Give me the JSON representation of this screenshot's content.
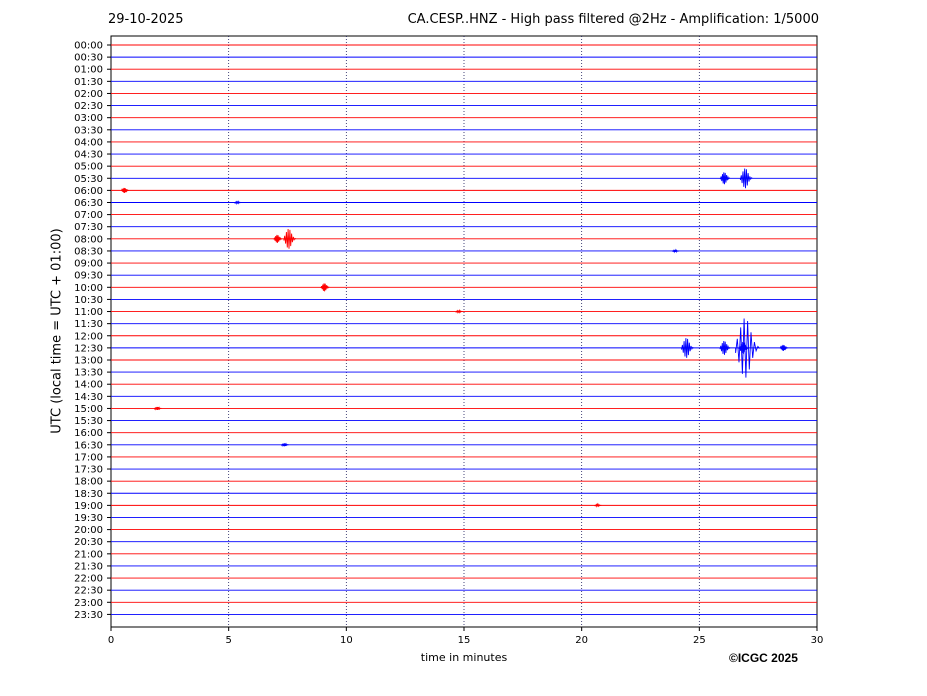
{
  "header": {
    "date": "29-10-2025",
    "title": "CA.CESP..HNZ - High pass filtered @2Hz - Amplification: 1/5000"
  },
  "footer": {
    "credit": "©ICGC 2025"
  },
  "chart_data": {
    "type": "line",
    "title": "CA.CESP..HNZ - High pass filtered @2Hz - Amplification: 1/5000",
    "xlabel": "time in minutes",
    "ylabel": "UTC (local time = UTC + 01:00)",
    "xlim": [
      0,
      30
    ],
    "xticks": [
      0,
      5,
      10,
      15,
      20,
      25,
      30
    ],
    "grid": "vertical dotted at x = 5, 10, 15, 20, 25",
    "colors": {
      "even_hour_rows": "#ff0000",
      "half_hour_rows": "#0000ff"
    },
    "rows": [
      "00:00",
      "00:30",
      "01:00",
      "01:30",
      "02:00",
      "02:30",
      "03:00",
      "03:30",
      "04:00",
      "04:30",
      "05:00",
      "05:30",
      "06:00",
      "06:30",
      "07:00",
      "07:30",
      "08:00",
      "08:30",
      "09:00",
      "09:30",
      "10:00",
      "10:30",
      "11:00",
      "11:30",
      "12:00",
      "12:30",
      "13:00",
      "13:30",
      "14:00",
      "14:30",
      "15:00",
      "15:30",
      "16:00",
      "16:30",
      "17:00",
      "17:30",
      "18:00",
      "18:30",
      "19:00",
      "19:30",
      "20:00",
      "20:30",
      "21:00",
      "21:30",
      "22:00",
      "22:30",
      "23:00",
      "23:30"
    ],
    "events": [
      {
        "row": "05:30",
        "minute": 26.1,
        "amplitude": 0.6
      },
      {
        "row": "05:30",
        "minute": 27.0,
        "amplitude": 1.0
      },
      {
        "row": "06:00",
        "minute": 0.6,
        "amplitude": 0.25
      },
      {
        "row": "06:30",
        "minute": 5.4,
        "amplitude": 0.1
      },
      {
        "row": "08:00",
        "minute": 7.1,
        "amplitude": 0.4
      },
      {
        "row": "08:00",
        "minute": 7.6,
        "amplitude": 1.0
      },
      {
        "row": "08:30",
        "minute": 24.0,
        "amplitude": 0.1
      },
      {
        "row": "10:00",
        "minute": 9.1,
        "amplitude": 0.4
      },
      {
        "row": "11:00",
        "minute": 14.8,
        "amplitude": 0.1
      },
      {
        "row": "12:30",
        "minute": 24.5,
        "amplitude": 1.0
      },
      {
        "row": "12:30",
        "minute": 26.1,
        "amplitude": 0.7
      },
      {
        "row": "12:30",
        "minute": 26.9,
        "amplitude": 0.6
      },
      {
        "row": "12:30",
        "minute": 27.05,
        "amplitude": 3.0
      },
      {
        "row": "12:30",
        "minute": 28.6,
        "amplitude": 0.3
      },
      {
        "row": "15:00",
        "minute": 2.0,
        "amplitude": 0.15
      },
      {
        "row": "16:30",
        "minute": 7.4,
        "amplitude": 0.15
      },
      {
        "row": "19:00",
        "minute": 20.7,
        "amplitude": 0.1
      }
    ]
  }
}
